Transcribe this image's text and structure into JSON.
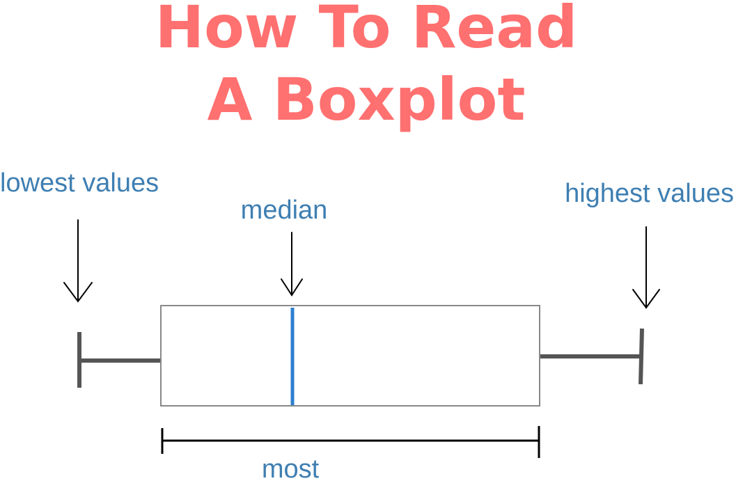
{
  "title": {
    "line1": "How To Read",
    "line2": "A Boxplot"
  },
  "labels": {
    "lowest": "lowest values",
    "median": "median",
    "highest": "highest values",
    "most": "most"
  },
  "colors": {
    "title": "#ff7070",
    "label": "#3f7fb2",
    "median_line": "#2f7fd0",
    "whisker": "#555555",
    "box_border": "#888888",
    "arrow": "#000000"
  }
}
